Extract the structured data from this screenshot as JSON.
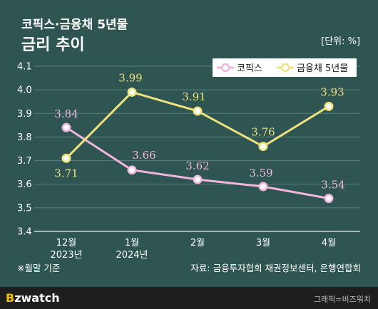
{
  "header": {
    "title_line1": "코픽스·금융채 5년물",
    "title_line2": "금리 추이",
    "unit": "[단위: %]"
  },
  "chart_data": {
    "type": "line",
    "categories": [
      [
        "12월",
        "2023년"
      ],
      [
        "1월",
        "2024년"
      ],
      [
        "2월"
      ],
      [
        "3월"
      ],
      [
        "4월"
      ]
    ],
    "series": [
      {
        "name": "코픽스",
        "color": "#f0b6de",
        "values": [
          3.84,
          3.66,
          3.62,
          3.59,
          3.54
        ],
        "labels": [
          "3.84",
          "3.66",
          "3.62",
          "3.59",
          "3.54"
        ]
      },
      {
        "name": "금융채 5년물",
        "color": "#efe27e",
        "values": [
          3.71,
          3.99,
          3.91,
          3.76,
          3.93
        ],
        "labels": [
          "3.71",
          "3.99",
          "3.91",
          "3.76",
          "3.93"
        ]
      }
    ],
    "ylim": [
      3.4,
      4.1
    ],
    "yticks": [
      "3.4",
      "3.5",
      "3.6",
      "3.7",
      "3.8",
      "3.9",
      "4.0",
      "4.1"
    ],
    "legend": "top-right",
    "grid": true
  },
  "notes": {
    "left": "※월말 기준",
    "source": "자료: 금융투자협회 채권정보센터, 은행연합회"
  },
  "footer": {
    "brand_b": "B",
    "brand_rest": "zwatch",
    "brand_accent": "#f2c200",
    "credit": "그래픽=비즈워치"
  }
}
